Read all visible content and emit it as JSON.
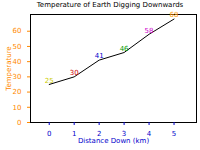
{
  "chart_data": {
    "type": "line",
    "title": "Temperature of Earth Digging Downwards",
    "x_label": "Distance Down (km)",
    "y_label": "Temperature",
    "x": [
      0,
      1,
      2,
      3,
      4,
      5
    ],
    "values": [
      25,
      30,
      41,
      46,
      58,
      68
    ],
    "color": "#000000",
    "colors": [
      "#cccc00",
      "#cc0000",
      "#0000cc",
      "#009900",
      "#cc00cc",
      "#ff9900"
    ],
    "data_labels": true,
    "xlim": [
      -0.75,
      5.9
    ],
    "xticks": [
      0,
      1,
      2,
      3,
      4,
      5
    ],
    "ylim": [
      0,
      71
    ],
    "yticks": [
      0,
      10,
      20,
      30,
      40,
      50,
      60
    ]
  }
}
